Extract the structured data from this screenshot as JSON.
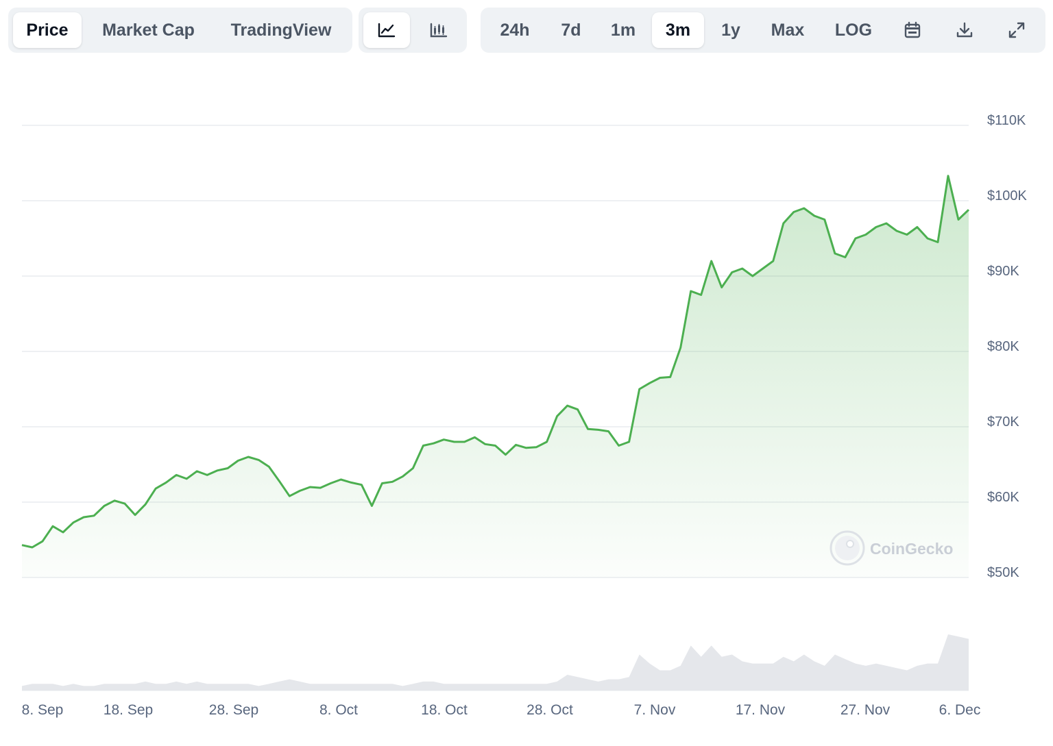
{
  "toolbar": {
    "tabs": [
      {
        "label": "Price",
        "active": true
      },
      {
        "label": "Market Cap",
        "active": false
      },
      {
        "label": "TradingView",
        "active": false
      }
    ],
    "chart_types": [
      {
        "icon": "line-chart-icon",
        "active": true
      },
      {
        "icon": "candlestick-chart-icon",
        "active": false
      }
    ],
    "ranges": [
      {
        "label": "24h",
        "active": false
      },
      {
        "label": "7d",
        "active": false
      },
      {
        "label": "1m",
        "active": false
      },
      {
        "label": "3m",
        "active": true
      },
      {
        "label": "1y",
        "active": false
      },
      {
        "label": "Max",
        "active": false
      },
      {
        "label": "LOG",
        "active": false
      }
    ],
    "tools": [
      "calendar-icon",
      "download-icon",
      "expand-icon"
    ]
  },
  "watermark": "CoinGecko",
  "colors": {
    "line": "#4caf50",
    "volume": "#e5e7eb",
    "grid": "#e9ecef"
  },
  "chart_data": {
    "type": "area",
    "title": "",
    "ylabel": "",
    "xlabel": "",
    "x_ticks": [
      "8. Sep",
      "18. Sep",
      "28. Sep",
      "8. Oct",
      "18. Oct",
      "28. Oct",
      "7. Nov",
      "17. Nov",
      "27. Nov",
      "6. Dec"
    ],
    "y_ticks": [
      "$50K",
      "$60K",
      "$70K",
      "$80K",
      "$90K",
      "$100K",
      "$110K"
    ],
    "y_tick_values": [
      50000,
      60000,
      70000,
      80000,
      90000,
      100000,
      110000
    ],
    "ylim": [
      50000,
      110000
    ],
    "grid": true,
    "series": [
      {
        "values": [
          54300,
          54000,
          54800,
          56800,
          56000,
          57300,
          58000,
          58200,
          59500,
          60200,
          59800,
          58300,
          59700,
          61800,
          62600,
          63600,
          63100,
          64100,
          63600,
          64200,
          64500,
          65500,
          66000,
          65600,
          64700,
          62800,
          60800,
          61500,
          62000,
          61900,
          62500,
          63000,
          62600,
          62300,
          59500,
          62500,
          62700,
          63400,
          64500,
          67500,
          67800,
          68300,
          68000,
          68000,
          68600,
          67700,
          67500,
          66300,
          67600,
          67200,
          67300,
          68000,
          71400,
          72800,
          72300,
          69700,
          69600,
          69400,
          67500,
          68000,
          75000,
          75800,
          76500,
          76600,
          80500,
          88000,
          87500,
          92000,
          88500,
          90500,
          91000,
          90000,
          91000,
          92000,
          97000,
          98500,
          99000,
          98000,
          97500,
          93000,
          92500,
          95000,
          95500,
          96500,
          97000,
          96000,
          95500,
          96500,
          95000,
          94500,
          103300,
          97500,
          98800
        ]
      }
    ],
    "volume": [
      2,
      3,
      3,
      3,
      2,
      3,
      2,
      2,
      3,
      3,
      3,
      3,
      4,
      3,
      3,
      4,
      3,
      4,
      3,
      3,
      3,
      3,
      3,
      2,
      3,
      4,
      5,
      4,
      3,
      3,
      3,
      3,
      3,
      3,
      3,
      3,
      3,
      2,
      3,
      4,
      4,
      3,
      3,
      3,
      3,
      3,
      3,
      3,
      3,
      3,
      3,
      3,
      4,
      7,
      6,
      5,
      4,
      5,
      5,
      6,
      16,
      12,
      9,
      9,
      11,
      20,
      15,
      20,
      15,
      16,
      13,
      12,
      12,
      12,
      15,
      13,
      16,
      13,
      11,
      16,
      14,
      12,
      11,
      12,
      11,
      10,
      9,
      11,
      12,
      12,
      25,
      24,
      23
    ]
  }
}
